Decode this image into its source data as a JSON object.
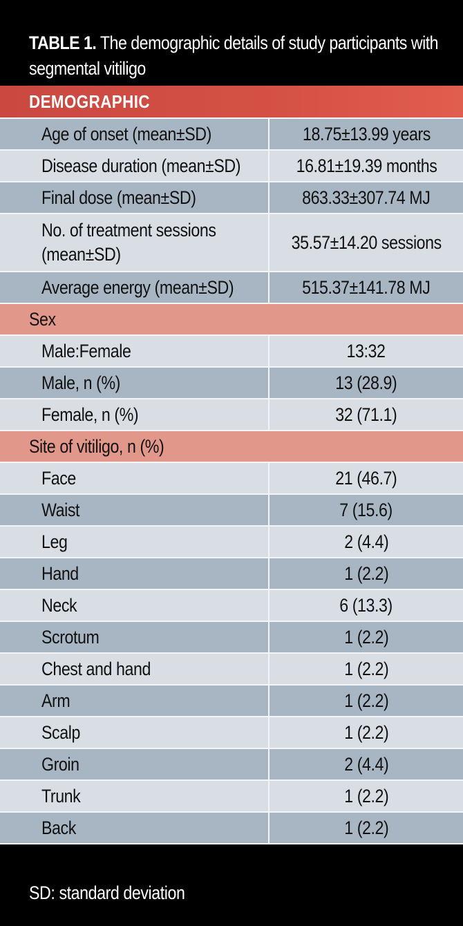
{
  "caption": {
    "label": "TABLE 1.",
    "text": " The demographic details of study participants with segmental vitiligo"
  },
  "demographic_header": "DEMOGRAPHIC",
  "demographic_rows": [
    {
      "label": "Age of onset (mean±SD)",
      "value": "18.75±13.99  years"
    },
    {
      "label": "Disease duration (mean±SD)",
      "value": "16.81±19.39 months"
    },
    {
      "label": "Final dose (mean±SD)",
      "value": "863.33±307.74  MJ"
    },
    {
      "label": "No. of treatment sessions\n(mean±SD)",
      "value": "35.57±14.20 sessions"
    },
    {
      "label": "Average energy (mean±SD)",
      "value": "515.37±141.78  MJ"
    }
  ],
  "sex_header": "Sex",
  "sex_rows": [
    {
      "label": "Male:Female",
      "value": "13:32"
    },
    {
      "label": "Male, n (%)",
      "value": "13 (28.9)"
    },
    {
      "label": "Female, n (%)",
      "value": "32 (71.1)"
    }
  ],
  "site_header": "Site of vitiligo, n (%)",
  "site_rows": [
    {
      "label": "Face",
      "value": "21 (46.7)"
    },
    {
      "label": "Waist",
      "value": "7 (15.6)"
    },
    {
      "label": "Leg",
      "value": "2 (4.4)"
    },
    {
      "label": "Hand",
      "value": "1 (2.2)"
    },
    {
      "label": "Neck",
      "value": "6 (13.3)"
    },
    {
      "label": "Scrotum",
      "value": "1 (2.2)"
    },
    {
      "label": "Chest and hand",
      "value": "1 (2.2)"
    },
    {
      "label": "Arm",
      "value": "1 (2.2)"
    },
    {
      "label": "Scalp",
      "value": "1 (2.2)"
    },
    {
      "label": "Groin",
      "value": "2 (4.4)"
    },
    {
      "label": "Trunk",
      "value": "1 (2.2)"
    },
    {
      "label": "Back",
      "value": "1 (2.2)"
    }
  ],
  "footnote": "SD: standard deviation",
  "colors": {
    "background": "#000000",
    "demographic_header": "#d45145",
    "group_header": "#e2978b",
    "row_light": "#d9dee4",
    "row_dark": "#a8b6c3"
  }
}
